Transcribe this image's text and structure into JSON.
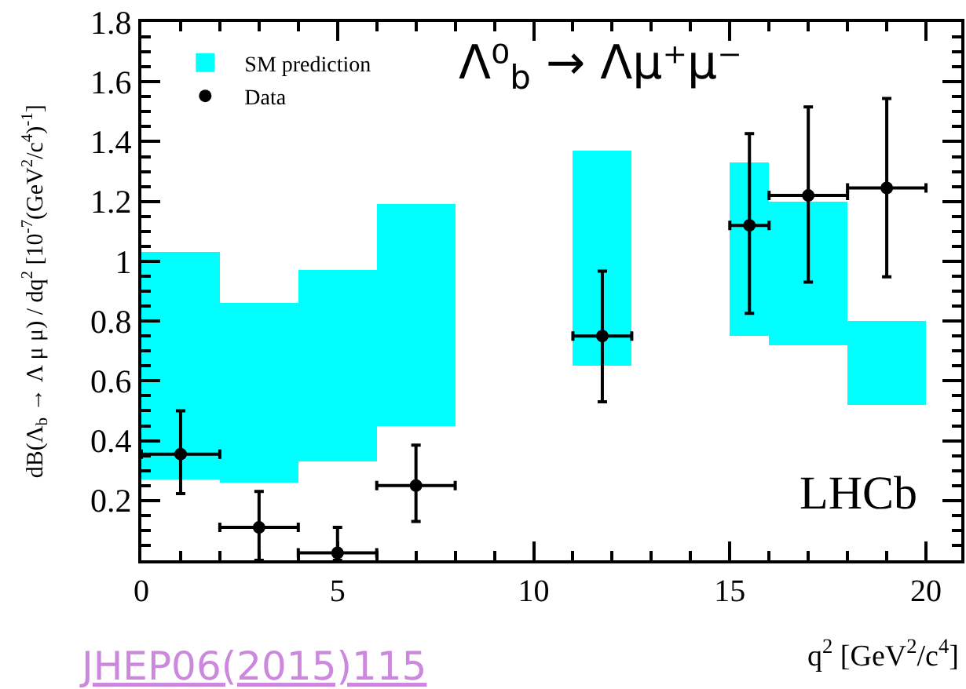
{
  "chart_data": {
    "type": "scatter",
    "title": "Λ⁰$_{b}$ → Λμ⁺μ⁻",
    "xlabel": "q$^{2}$ [GeV$^{2}$/c$^{4}$]",
    "ylabel": "dB(Λ$_{b}$ → Λ μ μ) / dq$^{2}$ [10$^{-7}$(GeV$^{2}$/c$^{4}$)$^{-1}$]",
    "annotations": [
      "LHCb",
      "JHEP06(2015)115"
    ],
    "xlim": [
      0,
      20.9
    ],
    "xticks": [
      0,
      5,
      10,
      15,
      20
    ],
    "ylim": [
      0,
      1.8
    ],
    "yticks": [
      0.2,
      0.4,
      0.6,
      0.8,
      1,
      1.2,
      1.4,
      1.6,
      1.8
    ],
    "grid": false,
    "legend": "top left",
    "marker": "circle",
    "series": [
      {
        "name": "SM prediction",
        "type": "histogram",
        "color": "#00ffff",
        "bins": [
          0,
          2,
          4,
          6,
          8,
          11,
          12.5,
          15,
          16,
          18,
          20
        ],
        "base": [
          0.27,
          0.26,
          0.33,
          0.45,
          null,
          0.65,
          null,
          0.75,
          0.72,
          0.52
        ],
        "values": [
          0.76,
          0.6,
          0.64,
          0.74,
          null,
          0.72,
          null,
          0.58,
          0.48,
          0.28
        ]
      },
      {
        "name": "Data",
        "color": "#000000",
        "x": [
          1,
          3,
          5,
          7,
          11.75,
          15.5,
          17,
          19
        ],
        "xerrors": [
          [
            0,
            2
          ],
          [
            2,
            4
          ],
          [
            4,
            6
          ],
          [
            6,
            8
          ],
          [
            11,
            12.5
          ],
          [
            15,
            16
          ],
          [
            16,
            18
          ],
          [
            18,
            20
          ]
        ],
        "values": [
          0.355,
          0.11,
          0.025,
          0.25,
          0.75,
          1.12,
          1.22,
          1.245
        ],
        "errors": [
          [
            0.223,
            0.5
          ],
          [
            0,
            0.23
          ],
          [
            0,
            0.11
          ],
          [
            0.13,
            0.385
          ],
          [
            0.53,
            0.967
          ],
          [
            0.826,
            1.427
          ],
          [
            0.93,
            1.516
          ],
          [
            0.948,
            1.544
          ]
        ]
      }
    ]
  }
}
